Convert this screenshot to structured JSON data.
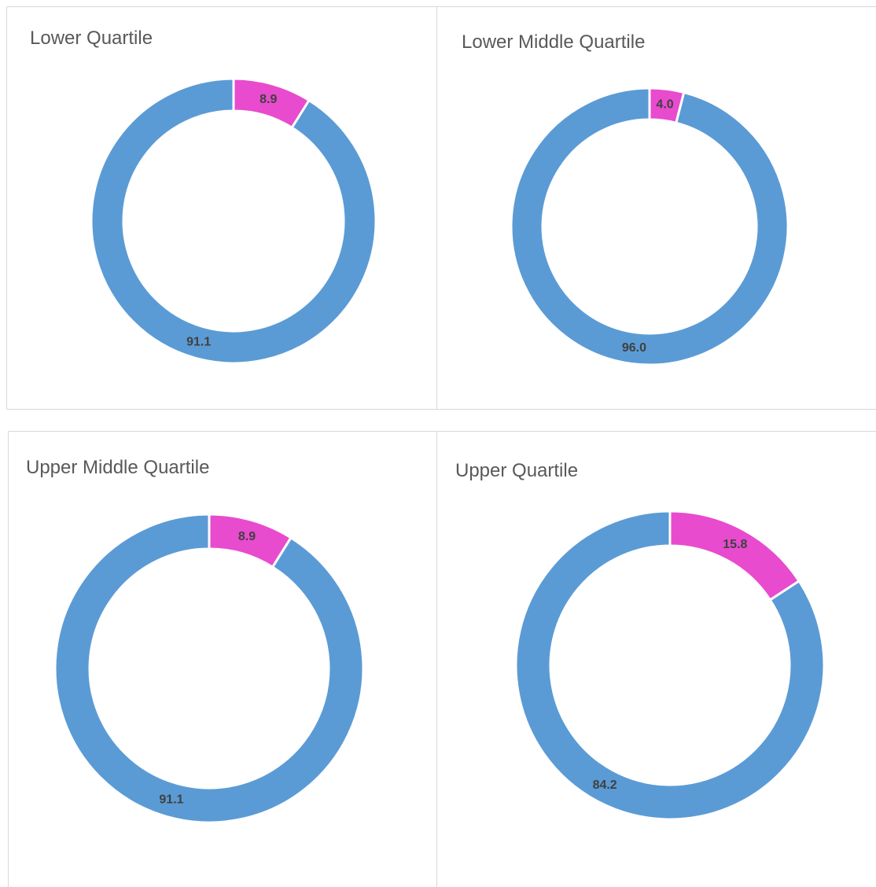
{
  "chart_data": [
    {
      "type": "donut",
      "title": "Lower Quartile",
      "values": [
        8.9,
        91.1
      ],
      "value_labels": [
        "8.9",
        "91.1"
      ],
      "colors": [
        "#e84bce",
        "#5b9bd5"
      ]
    },
    {
      "type": "donut",
      "title": "Lower Middle Quartile",
      "values": [
        4.0,
        96.0
      ],
      "value_labels": [
        "4.0",
        "96.0"
      ],
      "colors": [
        "#e84bce",
        "#5b9bd5"
      ]
    },
    {
      "type": "donut",
      "title": "Upper Middle Quartile",
      "values": [
        8.9,
        91.1
      ],
      "value_labels": [
        "8.9",
        "91.1"
      ],
      "colors": [
        "#e84bce",
        "#5b9bd5"
      ]
    },
    {
      "type": "donut",
      "title": "Upper Quartile",
      "values": [
        15.8,
        84.2
      ],
      "value_labels": [
        "15.8",
        "84.2"
      ],
      "colors": [
        "#e84bce",
        "#5b9bd5"
      ]
    }
  ]
}
